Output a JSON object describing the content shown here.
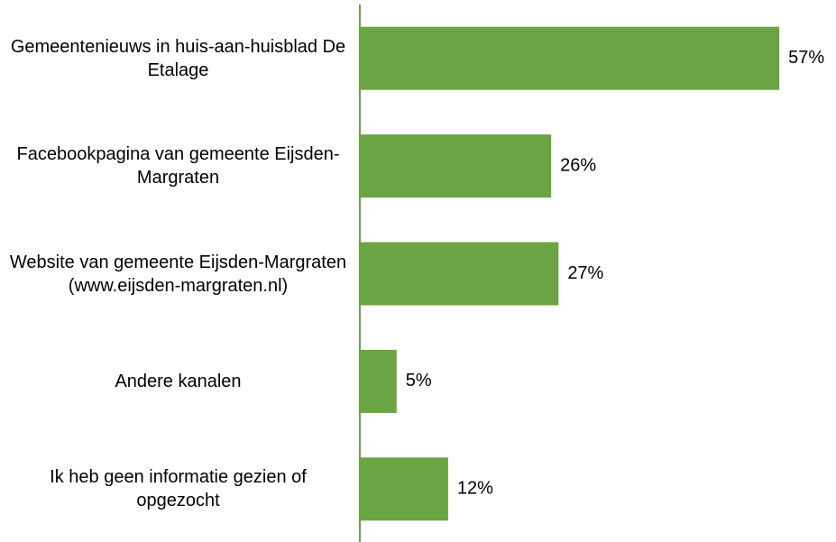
{
  "chart_data": {
    "type": "barh",
    "categories": [
      "Gemeentenieuws in huis-aan-huisblad De Etalage",
      "Facebookpagina van gemeente Eijsden-Margraten",
      "Website van gemeente Eijsden-Margraten (www.eijsden-margraten.nl)",
      "Andere kanalen",
      "Ik heb geen informatie gezien of opgezocht"
    ],
    "values": [
      57,
      26,
      27,
      5,
      12
    ],
    "value_labels": [
      "57%",
      "26%",
      "27%",
      "5%",
      "12%"
    ],
    "color": "#6aa443"
  }
}
